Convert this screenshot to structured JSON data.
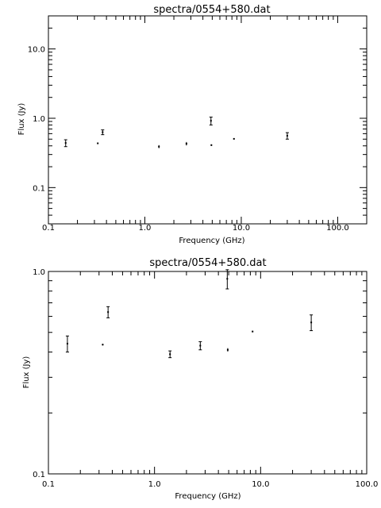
{
  "chart_data": [
    {
      "type": "scatter",
      "title": "spectra/0554+580.dat",
      "xlabel": "Frequency (GHz)",
      "ylabel": "Flux (Jy)",
      "x_scale": "log",
      "y_scale": "log",
      "xlim": [
        0.1,
        200.0
      ],
      "ylim": [
        0.03,
        30.0
      ],
      "x_ticks": [
        "0.1",
        "1.0",
        "10.0",
        "100.0"
      ],
      "y_ticks": [
        "0.1",
        "1.0",
        "10.0"
      ],
      "grid": false,
      "points": [
        {
          "x": 0.151,
          "y": 0.44,
          "yerr": 0.05
        },
        {
          "x": 0.325,
          "y": 0.435,
          "yerr": 0.01
        },
        {
          "x": 0.365,
          "y": 0.63,
          "yerr": 0.05
        },
        {
          "x": 1.4,
          "y": 0.39,
          "yerr": 0.02
        },
        {
          "x": 2.7,
          "y": 0.43,
          "yerr": 0.025
        },
        {
          "x": 4.85,
          "y": 0.92,
          "yerr": 0.12
        },
        {
          "x": 4.9,
          "y": 0.41,
          "yerr": 0.01
        },
        {
          "x": 8.4,
          "y": 0.505,
          "yerr": 0.005
        },
        {
          "x": 30.0,
          "y": 0.56,
          "yerr": 0.06
        }
      ]
    },
    {
      "type": "scatter",
      "title": "spectra/0554+580.dat",
      "xlabel": "Frequency (GHz)",
      "ylabel": "Flux (Jy)",
      "x_scale": "log",
      "y_scale": "log",
      "xlim": [
        0.1,
        100.0
      ],
      "ylim": [
        0.1,
        1.0
      ],
      "x_ticks": [
        "0.1",
        "1.0",
        "10.0",
        "100.0"
      ],
      "y_ticks": [
        "0.1",
        "1.0"
      ],
      "grid": false,
      "points": [
        {
          "x": 0.151,
          "y": 0.44,
          "yerr": 0.04
        },
        {
          "x": 0.325,
          "y": 0.435,
          "yerr": 0.004
        },
        {
          "x": 0.365,
          "y": 0.63,
          "yerr": 0.04
        },
        {
          "x": 1.4,
          "y": 0.39,
          "yerr": 0.015
        },
        {
          "x": 2.7,
          "y": 0.43,
          "yerr": 0.02
        },
        {
          "x": 4.85,
          "y": 0.92,
          "yerr": 0.1
        },
        {
          "x": 4.9,
          "y": 0.41,
          "yerr": 0.008
        },
        {
          "x": 8.4,
          "y": 0.505,
          "yerr": 0.004
        },
        {
          "x": 30.0,
          "y": 0.56,
          "yerr": 0.05
        }
      ]
    }
  ]
}
